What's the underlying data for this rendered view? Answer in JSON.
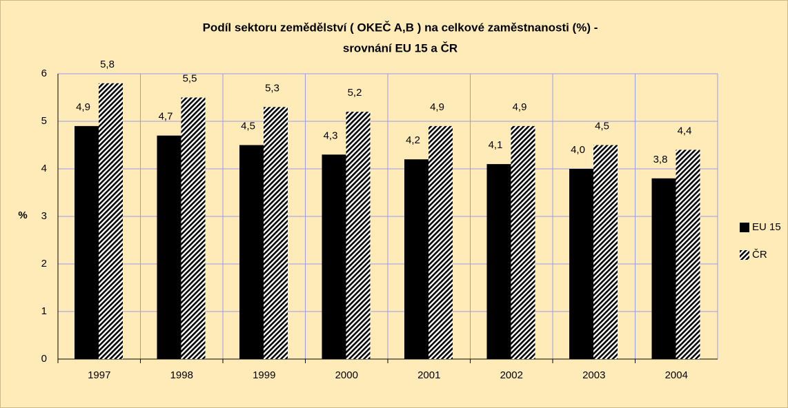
{
  "chart_data": {
    "type": "bar",
    "title": "Podíl sektoru zemědělství ( OKEČ A,B ) na celkové zaměstnanosti (%) -",
    "subtitle": "srovnání EU 15 a ČR",
    "y_label": "%",
    "categories": [
      "1997",
      "1998",
      "1999",
      "2000",
      "2001",
      "2002",
      "2003",
      "2004"
    ],
    "series": [
      {
        "name": "EU 15",
        "color": "#000000",
        "hatch": false,
        "values": [
          4.9,
          4.7,
          4.5,
          4.3,
          4.2,
          4.1,
          4.0,
          3.8
        ],
        "value_labels": [
          "4,9",
          "4,7",
          "4,5",
          "4,3",
          "4,2",
          "4,1",
          "4,0",
          "3,8"
        ]
      },
      {
        "name": "ČR",
        "color": "#000000",
        "hatch": true,
        "values": [
          5.8,
          5.5,
          5.3,
          5.2,
          4.9,
          4.9,
          4.5,
          4.4
        ],
        "value_labels": [
          "5,8",
          "5,5",
          "5,3",
          "5,2",
          "4,9",
          "4,9",
          "4,5",
          "4,4"
        ]
      }
    ],
    "ylim": [
      0,
      6
    ],
    "yticks": [
      0,
      1,
      2,
      3,
      4,
      5,
      6
    ],
    "grid": true,
    "legend": "right"
  }
}
